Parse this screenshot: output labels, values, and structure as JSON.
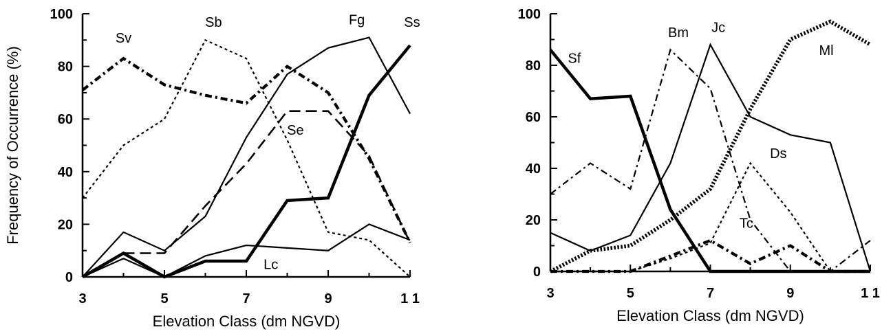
{
  "chart_data": [
    {
      "type": "line",
      "ylabel": "Frequency of Occurrence (%)",
      "xlabel": "Elevation Class (dm NGVD)",
      "xlim": [
        3,
        11
      ],
      "ylim": [
        0,
        100
      ],
      "xticks": [
        3,
        5,
        7,
        9,
        11
      ],
      "xtick_labels": [
        "3",
        "5",
        "7",
        "9",
        "1 1"
      ],
      "yticks": [
        0,
        20,
        40,
        60,
        80,
        100
      ],
      "grid": false,
      "series": [
        {
          "name": "Sv",
          "style": "dashdot-heavy",
          "x": [
            3,
            4,
            5,
            6,
            7,
            8,
            9,
            10,
            11
          ],
          "y": [
            71,
            83,
            73,
            69,
            66,
            80,
            70,
            45,
            13
          ],
          "label_at": [
            4,
            89
          ]
        },
        {
          "name": "Sb",
          "style": "dotted",
          "x": [
            3,
            4,
            5,
            6,
            7,
            8,
            9,
            10,
            11
          ],
          "y": [
            30,
            50,
            60,
            90,
            83,
            52,
            17,
            14,
            0
          ],
          "label_at": [
            6.2,
            95
          ]
        },
        {
          "name": "Fg",
          "style": "solid-thin",
          "x": [
            3,
            4,
            5,
            6,
            7,
            8,
            9,
            10,
            11
          ],
          "y": [
            0,
            17,
            10,
            23,
            53,
            77,
            87,
            91,
            62
          ],
          "label_at": [
            9.7,
            96
          ]
        },
        {
          "name": "Ss",
          "style": "solid-heavy",
          "x": [
            3,
            4,
            5,
            6,
            7,
            8,
            9,
            10,
            11
          ],
          "y": [
            0,
            9,
            0,
            6,
            6,
            29,
            30,
            69,
            88
          ],
          "label_at": [
            11.05,
            95
          ]
        },
        {
          "name": "Se",
          "style": "dashed-long",
          "x": [
            4,
            5,
            6,
            7,
            8,
            9,
            10,
            11
          ],
          "y": [
            9,
            9,
            27,
            43,
            63,
            63,
            46,
            13
          ],
          "label_at": [
            8.2,
            54
          ]
        },
        {
          "name": "Lc",
          "style": "solid-thin",
          "x": [
            3,
            4,
            5,
            6,
            7,
            8,
            9,
            10,
            11
          ],
          "y": [
            0,
            7,
            0,
            8,
            12,
            11,
            10,
            20,
            14
          ],
          "label_at": [
            7.6,
            3
          ]
        }
      ]
    },
    {
      "type": "line",
      "ylabel": "",
      "xlabel": "Elevation Class (dm NGVD)",
      "xlim": [
        3,
        11
      ],
      "ylim": [
        0,
        100
      ],
      "xticks": [
        3,
        5,
        7,
        9,
        11
      ],
      "xtick_labels": [
        "3",
        "5",
        "7",
        "9",
        "1 1"
      ],
      "yticks": [
        0,
        20,
        40,
        60,
        80,
        100
      ],
      "grid": false,
      "series": [
        {
          "name": "Sf",
          "style": "solid-heavy",
          "x": [
            3,
            4,
            5,
            6,
            7,
            8,
            9,
            10,
            11
          ],
          "y": [
            86,
            67,
            68,
            24,
            0,
            0,
            0,
            0,
            0
          ],
          "label_at": [
            3.6,
            81
          ]
        },
        {
          "name": "Bm",
          "style": "dashdot",
          "x": [
            3,
            4,
            5,
            6,
            7,
            8,
            9,
            10,
            11
          ],
          "y": [
            30,
            42,
            32,
            86,
            71,
            20,
            0,
            0,
            12
          ],
          "label_at": [
            6.2,
            91
          ]
        },
        {
          "name": "Jc",
          "style": "solid-thin",
          "x": [
            3,
            4,
            5,
            6,
            7,
            8,
            9,
            10,
            11
          ],
          "y": [
            15,
            8,
            14,
            42,
            88,
            60,
            53,
            50,
            0
          ],
          "label_at": [
            7.2,
            93
          ]
        },
        {
          "name": "Ml",
          "style": "dotted-heavy",
          "x": [
            3,
            4,
            5,
            6,
            7,
            8,
            9,
            10,
            11
          ],
          "y": [
            0,
            8,
            10,
            20,
            32,
            63,
            90,
            97,
            88
          ],
          "label_at": [
            9.9,
            84
          ]
        },
        {
          "name": "Ds",
          "style": "dotted",
          "x": [
            3,
            4,
            5,
            6,
            7,
            8,
            9,
            10,
            11
          ],
          "y": [
            0,
            0,
            0,
            5,
            11,
            42,
            23,
            0,
            0
          ],
          "label_at": [
            8.7,
            44
          ]
        },
        {
          "name": "Tc",
          "style": "dashdot-heavy",
          "x": [
            3,
            4,
            5,
            6,
            7,
            8,
            9,
            10,
            11
          ],
          "y": [
            0,
            0,
            0,
            6,
            12,
            3,
            10,
            0,
            0
          ],
          "label_at": [
            7.9,
            17
          ]
        }
      ]
    }
  ]
}
